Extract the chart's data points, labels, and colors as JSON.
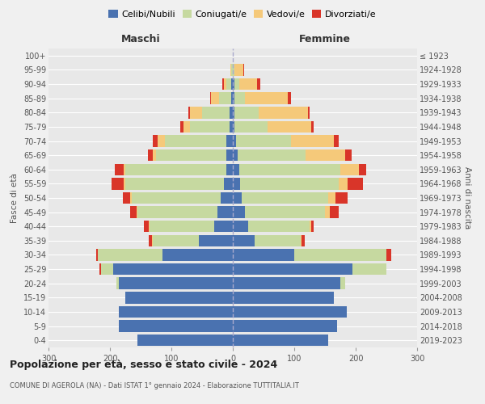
{
  "age_groups": [
    "0-4",
    "5-9",
    "10-14",
    "15-19",
    "20-24",
    "25-29",
    "30-34",
    "35-39",
    "40-44",
    "45-49",
    "50-54",
    "55-59",
    "60-64",
    "65-69",
    "70-74",
    "75-79",
    "80-84",
    "85-89",
    "90-94",
    "95-99",
    "100+"
  ],
  "birth_years": [
    "2019-2023",
    "2014-2018",
    "2009-2013",
    "2004-2008",
    "1999-2003",
    "1994-1998",
    "1989-1993",
    "1984-1988",
    "1979-1983",
    "1974-1978",
    "1969-1973",
    "1964-1968",
    "1959-1963",
    "1954-1958",
    "1949-1953",
    "1944-1948",
    "1939-1943",
    "1934-1938",
    "1929-1933",
    "1924-1928",
    "≤ 1923"
  ],
  "maschi": {
    "celibi": [
      155,
      185,
      185,
      175,
      185,
      195,
      115,
      55,
      30,
      25,
      20,
      15,
      10,
      10,
      10,
      5,
      5,
      3,
      2,
      0,
      0
    ],
    "coniugati": [
      0,
      0,
      0,
      0,
      5,
      20,
      105,
      75,
      105,
      130,
      145,
      160,
      165,
      115,
      100,
      65,
      45,
      20,
      8,
      2,
      0
    ],
    "vedovi": [
      0,
      0,
      0,
      0,
      0,
      0,
      0,
      2,
      2,
      2,
      2,
      2,
      2,
      5,
      12,
      10,
      20,
      12,
      5,
      2,
      0
    ],
    "divorziati": [
      0,
      0,
      0,
      0,
      0,
      2,
      3,
      5,
      8,
      10,
      12,
      20,
      15,
      8,
      8,
      5,
      2,
      2,
      2,
      0,
      0
    ]
  },
  "femmine": {
    "nubili": [
      155,
      170,
      185,
      165,
      175,
      195,
      100,
      35,
      25,
      20,
      15,
      12,
      10,
      8,
      5,
      2,
      2,
      2,
      2,
      0,
      0
    ],
    "coniugate": [
      0,
      0,
      0,
      0,
      8,
      55,
      150,
      75,
      100,
      130,
      140,
      160,
      165,
      110,
      90,
      55,
      40,
      18,
      8,
      2,
      0
    ],
    "vedove": [
      0,
      0,
      0,
      0,
      0,
      0,
      0,
      2,
      2,
      8,
      12,
      15,
      30,
      65,
      70,
      70,
      80,
      70,
      30,
      15,
      0
    ],
    "divorziate": [
      0,
      0,
      0,
      0,
      0,
      0,
      8,
      5,
      5,
      15,
      20,
      25,
      12,
      10,
      8,
      5,
      3,
      5,
      5,
      2,
      0
    ]
  },
  "colors": {
    "celibi": "#4a72b0",
    "coniugati": "#c6d9a0",
    "vedovi": "#f5c97a",
    "divorziati": "#d93529"
  },
  "xlim": 300,
  "title": "Popolazione per età, sesso e stato civile - 2024",
  "subtitle": "COMUNE DI AGEROLA (NA) - Dati ISTAT 1° gennaio 2024 - Elaborazione TUTTITALIA.IT",
  "ylabel_left": "Fasce di età",
  "ylabel_right": "Anni di nascita",
  "xlabel_left": "Maschi",
  "xlabel_right": "Femmine",
  "bg_color": "#f0f0f0",
  "grid_color": "#ffffff",
  "plot_bg": "#e8e8e8"
}
